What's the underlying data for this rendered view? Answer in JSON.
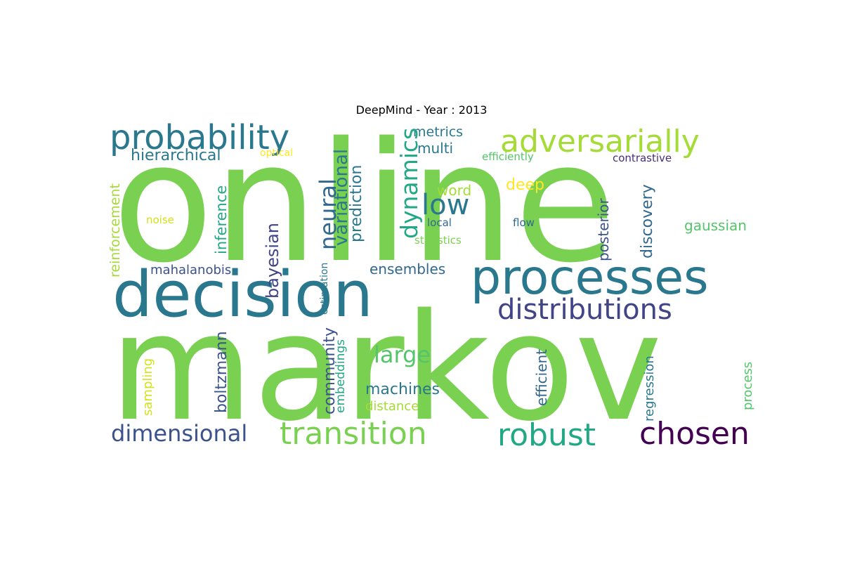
{
  "title": "DeepMind - Year : 2013",
  "words": [
    {
      "text": "online",
      "color": "#7ad151"
    },
    {
      "text": "markov",
      "color": "#7ad151"
    },
    {
      "text": "decision",
      "color": "#2a788e"
    },
    {
      "text": "processes",
      "color": "#2a788e"
    },
    {
      "text": "probability",
      "color": "#2a788e"
    },
    {
      "text": "adversarially",
      "color": "#a5db36"
    },
    {
      "text": "distributions",
      "color": "#414487"
    },
    {
      "text": "transition",
      "color": "#7ad151"
    },
    {
      "text": "robust",
      "color": "#22a884"
    },
    {
      "text": "chosen",
      "color": "#440154"
    },
    {
      "text": "dimensional",
      "color": "#3b528b"
    },
    {
      "text": "low",
      "color": "#2a788e"
    },
    {
      "text": "hierarchical",
      "color": "#2a788e"
    },
    {
      "text": "metrics",
      "color": "#2a788e"
    },
    {
      "text": "multi",
      "color": "#2a788e"
    },
    {
      "text": "dynamics",
      "color": "#22a884"
    },
    {
      "text": "neural",
      "color": "#31688e"
    },
    {
      "text": "variational",
      "color": "#2a788e"
    },
    {
      "text": "prediction",
      "color": "#2a788e"
    },
    {
      "text": "inference",
      "color": "#22a884"
    },
    {
      "text": "bayesian",
      "color": "#414487"
    },
    {
      "text": "reinforcement",
      "color": "#a5db36"
    },
    {
      "text": "noise",
      "color": "#d2e21b"
    },
    {
      "text": "optical",
      "color": "#fde725"
    },
    {
      "text": "efficiently",
      "color": "#54c568"
    },
    {
      "text": "contrastive",
      "color": "#472d7b"
    },
    {
      "text": "word",
      "color": "#a5db36"
    },
    {
      "text": "deep",
      "color": "#fde725"
    },
    {
      "text": "local",
      "color": "#31688e"
    },
    {
      "text": "flow",
      "color": "#31688e"
    },
    {
      "text": "statistics",
      "color": "#7ad151"
    },
    {
      "text": "posterior",
      "color": "#3b528b"
    },
    {
      "text": "discovery",
      "color": "#31688e"
    },
    {
      "text": "gaussian",
      "color": "#54c568"
    },
    {
      "text": "mahalanobis",
      "color": "#3b528b"
    },
    {
      "text": "ensembles",
      "color": "#31688e"
    },
    {
      "text": "estimation",
      "color": "#2a788e"
    },
    {
      "text": "large",
      "color": "#54c568"
    },
    {
      "text": "machines",
      "color": "#2a788e"
    },
    {
      "text": "distance",
      "color": "#a5db36"
    },
    {
      "text": "boltzmann",
      "color": "#3b528b"
    },
    {
      "text": "community",
      "color": "#3b528b"
    },
    {
      "text": "embeddings",
      "color": "#22a884"
    },
    {
      "text": "sampling",
      "color": "#d2e21b"
    },
    {
      "text": "efficient",
      "color": "#31688e"
    },
    {
      "text": "regression",
      "color": "#2a788e"
    },
    {
      "text": "process",
      "color": "#54c568"
    }
  ]
}
